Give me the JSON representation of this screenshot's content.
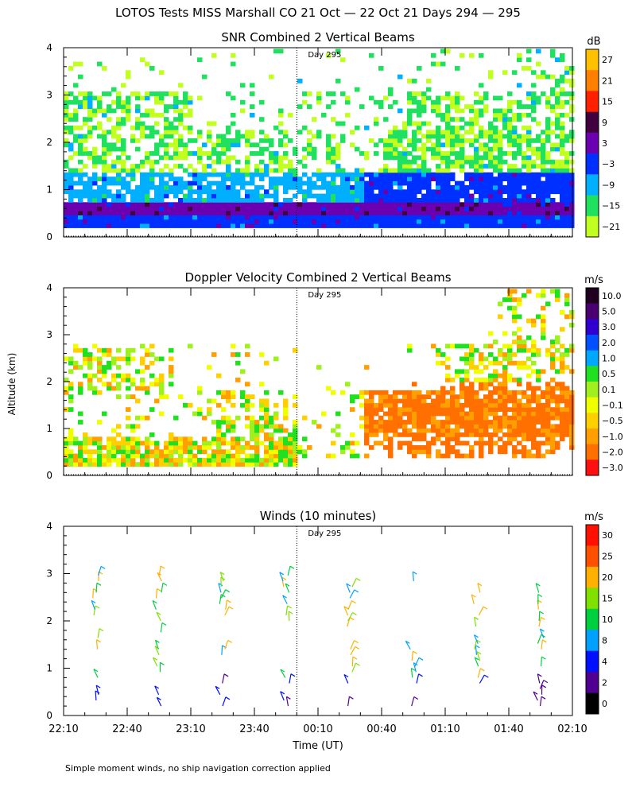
{
  "figure": {
    "title": "LOTOS Tests MISS Marshall CO  21 Oct — 22 Oct 21 Days 294 — 295",
    "footer_note": "Simple moment winds, no ship navigation correction applied",
    "ylabel": "Altitude (km)",
    "xlabel": "Time (UT)",
    "day_marker_label": "Day 295",
    "day_marker_time": "00:00",
    "x_ticks": [
      "22:10",
      "22:40",
      "23:10",
      "23:40",
      "00:10",
      "00:40",
      "01:10",
      "01:40",
      "02:10"
    ],
    "x_range_minutes": [
      0,
      240
    ],
    "day_marker_minute": 110
  },
  "chart_data": [
    {
      "type": "heatmap",
      "title": "SNR Combined 2 Vertical Beams",
      "xlabel": "Time (UT)",
      "ylabel": "Altitude (km)",
      "ylim": [
        0,
        4
      ],
      "yticks": [
        0,
        1,
        2,
        3,
        4
      ],
      "colorbar_unit": "dB",
      "colorbar_ticks": [
        "27",
        "21",
        "15",
        "9",
        "3",
        "−3",
        "−9",
        "−15",
        "−21"
      ],
      "colorbar_colors": [
        "#ffc000",
        "#ff7f00",
        "#ff2000",
        "#400040",
        "#6a00b0",
        "#0030ff",
        "#00b0ff",
        "#20e060",
        "#c0ff20"
      ],
      "colorbar_order": "top-to-bottom",
      "notes": "Strong low-level echo 0.2–0.7 km throughout; weaker returns up to ~3 km before and after 00:30 UT"
    },
    {
      "type": "heatmap",
      "title": "Doppler Velocity Combined 2 Vertical Beams",
      "xlabel": "Time (UT)",
      "ylabel": "Altitude (km)",
      "ylim": [
        0,
        4
      ],
      "yticks": [
        0,
        1,
        2,
        3,
        4
      ],
      "colorbar_unit": "m/s",
      "colorbar_ticks": [
        "10.0",
        "5.0",
        "3.0",
        "2.0",
        "1.0",
        "0.5",
        "0.1",
        "−0.1",
        "−0.5",
        "−1.0",
        "−2.0",
        "−3.0"
      ],
      "colorbar_colors": [
        "#200020",
        "#4a0070",
        "#3000d0",
        "#0050ff",
        "#00a8ff",
        "#20e020",
        "#a0f020",
        "#f0ff00",
        "#ffd000",
        "#ffa000",
        "#ff7000",
        "#ff1010"
      ],
      "colorbar_order": "top-to-bottom",
      "notes": "Downward (orange) motion 0.5–2 km after 00:40 UT; mixed velocities 2–3 km early in period"
    },
    {
      "type": "scatter",
      "title": "Winds (10 minutes)",
      "xlabel": "Time (UT)",
      "ylabel": "Altitude (km)",
      "ylim": [
        0,
        4
      ],
      "yticks": [
        0,
        1,
        2,
        3,
        4
      ],
      "colorbar_unit": "m/s",
      "colorbar_ticks": [
        "30",
        "25",
        "20",
        "15",
        "10",
        "8",
        "4",
        "2",
        "0"
      ],
      "colorbar_colors": [
        "#ff1000",
        "#ff5000",
        "#ffb000",
        "#80e000",
        "#00d040",
        "#00a0ff",
        "#0010ff",
        "#500090",
        "#000000"
      ],
      "colorbar_order": "top-to-bottom",
      "wind_profile_times_minutes": [
        15,
        45,
        75,
        105,
        135,
        165,
        195,
        225
      ],
      "notes": "Wind barbs at 10-minute profiles; profiles present near 22:25, 22:55, 23:25, 23:55, 00:25, 00:55, 01:25, 01:55 UT"
    }
  ]
}
